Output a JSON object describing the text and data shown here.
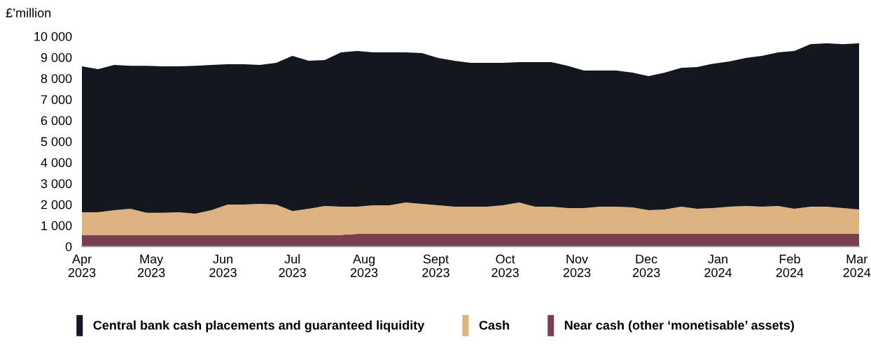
{
  "chart_data": {
    "type": "area",
    "stacked": true,
    "ylabel": "£’million",
    "x": [
      "2023-04-01",
      "2023-04-08",
      "2023-04-15",
      "2023-04-22",
      "2023-04-29",
      "2023-05-06",
      "2023-05-13",
      "2023-05-20",
      "2023-05-27",
      "2023-06-03",
      "2023-06-10",
      "2023-06-17",
      "2023-06-24",
      "2023-07-01",
      "2023-07-08",
      "2023-07-15",
      "2023-07-22",
      "2023-07-29",
      "2023-08-05",
      "2023-08-12",
      "2023-08-19",
      "2023-08-26",
      "2023-09-02",
      "2023-09-09",
      "2023-09-16",
      "2023-09-23",
      "2023-09-30",
      "2023-10-07",
      "2023-10-14",
      "2023-10-21",
      "2023-10-28",
      "2023-11-04",
      "2023-11-11",
      "2023-11-18",
      "2023-11-25",
      "2023-12-02",
      "2023-12-09",
      "2023-12-16",
      "2023-12-23",
      "2023-12-30",
      "2024-01-06",
      "2024-01-13",
      "2024-01-20",
      "2024-01-27",
      "2024-02-03",
      "2024-02-10",
      "2024-02-17",
      "2024-02-24",
      "2024-03-02"
    ],
    "series": [
      {
        "name": "Near cash (other ‘monetisable’ assets)",
        "color": "#7a3e4c",
        "values": [
          550,
          550,
          550,
          550,
          550,
          550,
          550,
          550,
          550,
          550,
          550,
          550,
          550,
          550,
          550,
          550,
          550,
          600,
          600,
          600,
          600,
          600,
          600,
          600,
          600,
          600,
          600,
          600,
          600,
          600,
          600,
          600,
          600,
          600,
          600,
          600,
          600,
          600,
          600,
          600,
          600,
          600,
          600,
          600,
          600,
          600,
          600,
          600,
          600
        ]
      },
      {
        "name": "Cash",
        "color": "#dbb280",
        "values": [
          1080,
          1080,
          1180,
          1240,
          1050,
          1050,
          1080,
          1010,
          1180,
          1440,
          1440,
          1480,
          1440,
          1140,
          1240,
          1380,
          1340,
          1290,
          1360,
          1360,
          1490,
          1430,
          1360,
          1290,
          1290,
          1290,
          1360,
          1490,
          1290,
          1290,
          1230,
          1230,
          1290,
          1290,
          1260,
          1130,
          1160,
          1290,
          1190,
          1230,
          1290,
          1330,
          1290,
          1330,
          1190,
          1290,
          1290,
          1230,
          1160
        ]
      },
      {
        "name": "Central bank cash placements and guaranteed liquidity",
        "color": "#131720",
        "values": [
          6940,
          6810,
          6910,
          6810,
          7000,
          6970,
          6940,
          7040,
          6910,
          6680,
          6680,
          6610,
          6750,
          7380,
          7050,
          6940,
          7350,
          7410,
          7280,
          7280,
          7150,
          7170,
          7010,
          6950,
          6850,
          6850,
          6780,
          6680,
          6880,
          6880,
          6770,
          6540,
          6480,
          6480,
          6410,
          6380,
          6510,
          6610,
          6750,
          6870,
          6910,
          7040,
          7180,
          7310,
          7510,
          7740,
          7780,
          7800,
          7910
        ]
      }
    ],
    "xlim": [
      "2023-04-01",
      "2024-03-02"
    ],
    "xticks": [
      {
        "value": "2023-04-01",
        "label": "Apr\n2023"
      },
      {
        "value": "2023-05-01",
        "label": "May\n2023"
      },
      {
        "value": "2023-06-01",
        "label": "Jun\n2023"
      },
      {
        "value": "2023-07-01",
        "label": "Jul\n2023"
      },
      {
        "value": "2023-08-01",
        "label": "Aug\n2023"
      },
      {
        "value": "2023-09-01",
        "label": "Sept\n2023"
      },
      {
        "value": "2023-10-01",
        "label": "Oct\n2023"
      },
      {
        "value": "2023-11-01",
        "label": "Nov\n2023"
      },
      {
        "value": "2023-12-01",
        "label": "Dec\n2023"
      },
      {
        "value": "2024-01-01",
        "label": "Jan\n2024"
      },
      {
        "value": "2024-02-01",
        "label": "Feb\n2024"
      },
      {
        "value": "2024-03-01",
        "label": "Mar\n2024"
      }
    ],
    "ylim": [
      0,
      10000
    ],
    "yticks": [
      0,
      {
        "value": 1000,
        "label": "1 000"
      },
      {
        "value": 2000,
        "label": "2 000"
      },
      {
        "value": 3000,
        "label": "3 000"
      },
      {
        "value": 4000,
        "label": "4 000"
      },
      {
        "value": 5000,
        "label": "5 000"
      },
      {
        "value": 6000,
        "label": "6 000"
      },
      {
        "value": 7000,
        "label": "7 000"
      },
      {
        "value": 8000,
        "label": "8 000"
      },
      {
        "value": 9000,
        "label": "9 000"
      },
      {
        "value": 10000,
        "label": "10 000"
      }
    ],
    "grid": false,
    "legend": "bottom"
  }
}
